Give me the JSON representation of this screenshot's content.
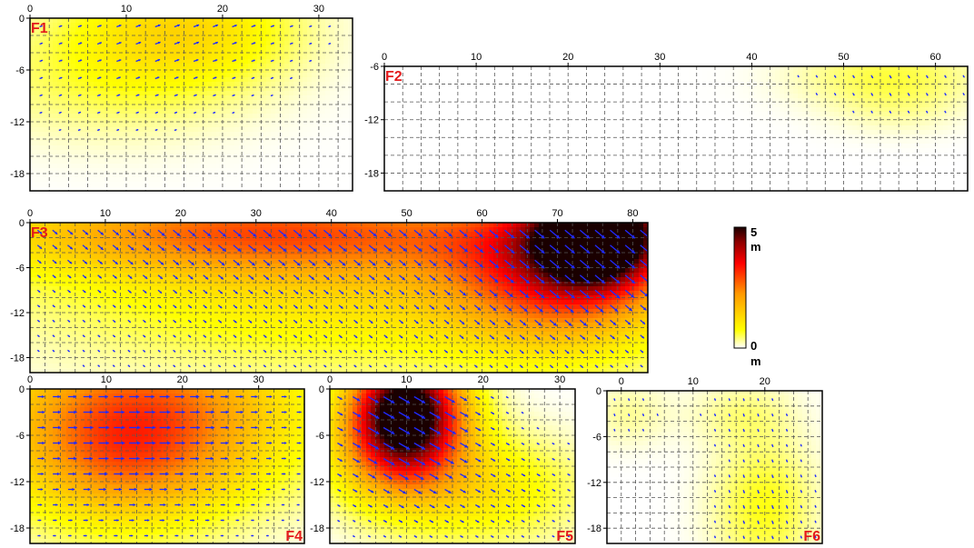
{
  "chart_data": {
    "type": "heatmap",
    "colorbar": {
      "max_label": "5",
      "min_label": "0",
      "unit": "m",
      "range": [
        0,
        5
      ],
      "colors": [
        "#ffffff",
        "#ffff00",
        "#ff9900",
        "#ff0000",
        "#8b0000",
        "#1a0000"
      ]
    },
    "arrow_color": "#1f2bff",
    "grid": true,
    "panels": [
      {
        "label": "F1",
        "xlim": [
          0,
          33.5
        ],
        "ylim": [
          -20,
          0
        ],
        "xticks": [
          0,
          10,
          20,
          30
        ],
        "yticks": [
          0,
          -6,
          -12,
          -18
        ],
        "peak_slip": 1.3,
        "sources": [
          {
            "x": 16,
            "y": -1,
            "sx": 8,
            "sy": 4.5,
            "amp": 1.2
          },
          {
            "x": 8,
            "y": -7,
            "sx": 10,
            "sy": 5,
            "amp": 0.5
          }
        ],
        "rake_deg": 20
      },
      {
        "label": "F2",
        "xlim": [
          0,
          63.5
        ],
        "ylim": [
          -20,
          -6
        ],
        "xticks": [
          0,
          10,
          20,
          30,
          40,
          50,
          60
        ],
        "yticks": [
          -6,
          -12,
          -18
        ],
        "peak_slip": 0.6,
        "sources": [
          {
            "x": 55,
            "y": -7,
            "sx": 7,
            "sy": 2.5,
            "amp": 0.55
          },
          {
            "x": 56,
            "y": -11,
            "sx": 5,
            "sy": 2,
            "amp": 0.2
          }
        ],
        "rake_deg": -60
      },
      {
        "label": "F3",
        "xlim": [
          0,
          82
        ],
        "ylim": [
          -20,
          0
        ],
        "xticks": [
          0,
          10,
          20,
          30,
          40,
          50,
          60,
          70,
          80
        ],
        "yticks": [
          0,
          -6,
          -12,
          -18
        ],
        "peak_slip": 5,
        "sources": [
          {
            "x": 76,
            "y": -1,
            "sx": 6,
            "sy": 5,
            "amp": 4.8
          },
          {
            "x": 70,
            "y": -6,
            "sx": 10,
            "sy": 7,
            "amp": 2.6
          },
          {
            "x": 30,
            "y": -1,
            "sx": 25,
            "sy": 4,
            "amp": 2.2
          },
          {
            "x": 45,
            "y": -8,
            "sx": 30,
            "sy": 8,
            "amp": 1.2
          }
        ],
        "rake_deg": -40
      },
      {
        "label": "F4",
        "xlim": [
          0,
          36
        ],
        "ylim": [
          -20,
          0
        ],
        "xticks": [
          0,
          10,
          20,
          30
        ],
        "yticks": [
          0,
          -6,
          -12,
          -18
        ],
        "peak_slip": 3,
        "sources": [
          {
            "x": 15,
            "y": -3,
            "sx": 14,
            "sy": 8,
            "amp": 2.6
          },
          {
            "x": 12,
            "y": -10,
            "sx": 9,
            "sy": 6,
            "amp": 1.1
          }
        ],
        "rake_deg": 0
      },
      {
        "label": "F5",
        "xlim": [
          0,
          32
        ],
        "ylim": [
          -20,
          0
        ],
        "xticks": [
          0,
          10,
          20,
          30
        ],
        "yticks": [
          0,
          -6,
          -12,
          -18
        ],
        "peak_slip": 5,
        "sources": [
          {
            "x": 10,
            "y": -2,
            "sx": 5,
            "sy": 5,
            "amp": 4.8
          },
          {
            "x": 9,
            "y": -8,
            "sx": 6,
            "sy": 5,
            "amp": 2.2
          },
          {
            "x": 20,
            "y": -13,
            "sx": 9,
            "sy": 5,
            "amp": 1.0
          }
        ],
        "rake_deg": -30
      },
      {
        "label": "F6",
        "xlim": [
          -2,
          28
        ],
        "ylim": [
          -20,
          0
        ],
        "xticks": [
          0,
          10,
          20
        ],
        "yticks": [
          0,
          -6,
          -12,
          -18
        ],
        "peak_slip": 0.8,
        "sources": [
          {
            "x": 20,
            "y": -15,
            "sx": 5,
            "sy": 6,
            "amp": 0.7
          },
          {
            "x": 17,
            "y": -3,
            "sx": 5,
            "sy": 3,
            "amp": 0.35
          },
          {
            "x": 1,
            "y": -3,
            "sx": 4,
            "sy": 3,
            "amp": 0.3
          }
        ],
        "rake_deg": -70
      }
    ]
  }
}
